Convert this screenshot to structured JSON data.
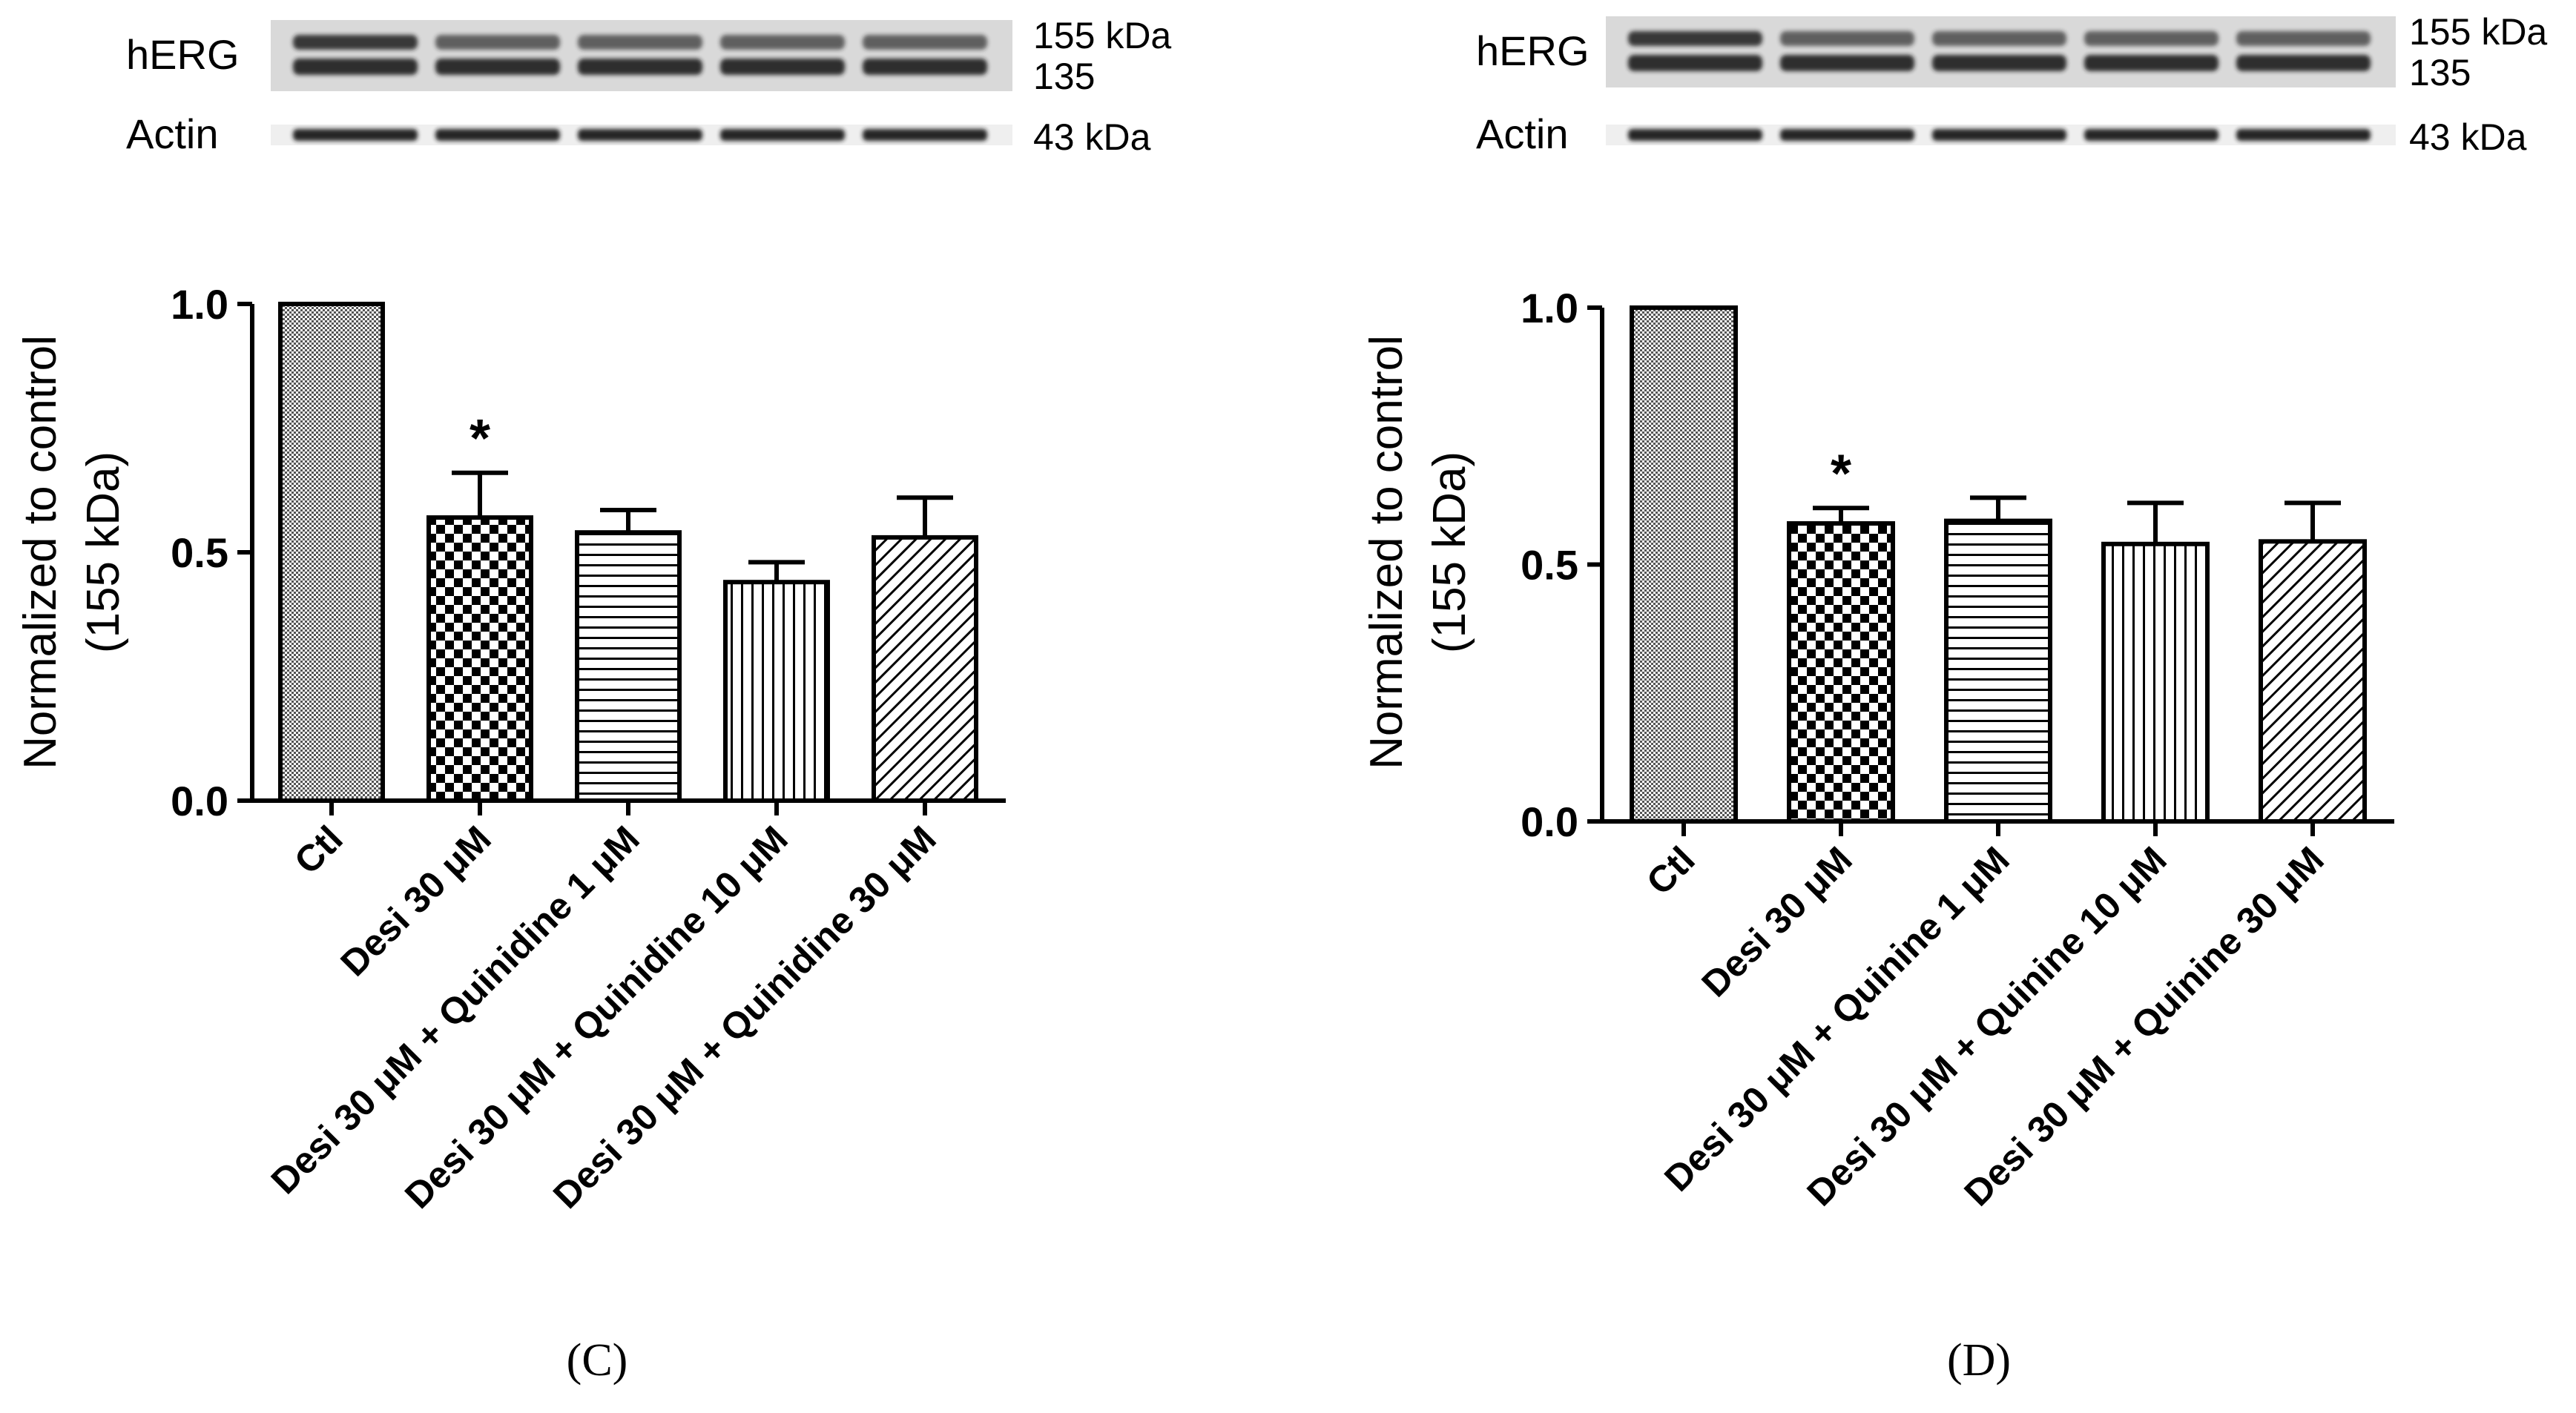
{
  "colors": {
    "axis": "#000000",
    "bar_outline": "#000000",
    "bar_pattern_fg": "#000000",
    "bar_pattern_bg": "#ffffff",
    "blot_background": "#d9d9d9",
    "blot_band": "#1e1e1e"
  },
  "chart_data": [
    {
      "panel": "(C)",
      "type": "bar",
      "ylabel_line1": "Normalized to control",
      "ylabel_line2": "(155 kDa)",
      "ylim": [
        0,
        1.0
      ],
      "yticks": [
        "0.0",
        "0.5",
        "1.0"
      ],
      "ytick_values": [
        0.0,
        0.5,
        1.0
      ],
      "categories": [
        "Ctl",
        "Desi 30 μM",
        "Desi 30 μM + Quinidine 1 μM",
        "Desi 30 μM + Quinidine 10 μM",
        "Desi 30 μM + Quinidine 30 μM"
      ],
      "values": [
        1.0,
        0.57,
        0.54,
        0.44,
        0.53
      ],
      "errors": [
        0.0,
        0.09,
        0.045,
        0.04,
        0.08
      ],
      "patterns": [
        "fine-dots",
        "checker",
        "horizontal-lines",
        "vertical-lines",
        "diagonal-lines"
      ],
      "significance": [
        "",
        "*",
        "",
        "",
        ""
      ],
      "grid": false,
      "blot": {
        "rows": [
          "hERG",
          "Actin"
        ],
        "lanes": 5,
        "markers_herg": [
          "155 kDa",
          "135"
        ],
        "marker_actin": "43 kDa"
      }
    },
    {
      "panel": "(D)",
      "type": "bar",
      "ylabel_line1": "Normalized to control",
      "ylabel_line2": "(155 kDa)",
      "ylim": [
        0,
        1.0
      ],
      "yticks": [
        "0.0",
        "0.5",
        "1.0"
      ],
      "ytick_values": [
        0.0,
        0.5,
        1.0
      ],
      "categories": [
        "Ctl",
        "Desi 30 μM",
        "Desi 30 μM + Quinine 1 μM",
        "Desi 30 μM + Quinine 10 μM",
        "Desi 30 μM + Quinine 30 μM"
      ],
      "values": [
        1.0,
        0.58,
        0.585,
        0.54,
        0.545
      ],
      "errors": [
        0.0,
        0.03,
        0.045,
        0.08,
        0.075
      ],
      "patterns": [
        "fine-dots",
        "checker",
        "horizontal-lines",
        "vertical-lines",
        "diagonal-lines"
      ],
      "significance": [
        "",
        "*",
        "",
        "",
        ""
      ],
      "grid": false,
      "blot": {
        "rows": [
          "hERG",
          "Actin"
        ],
        "lanes": 5,
        "markers_herg": [
          "155 kDa",
          "135"
        ],
        "marker_actin": "43 kDa"
      }
    }
  ]
}
